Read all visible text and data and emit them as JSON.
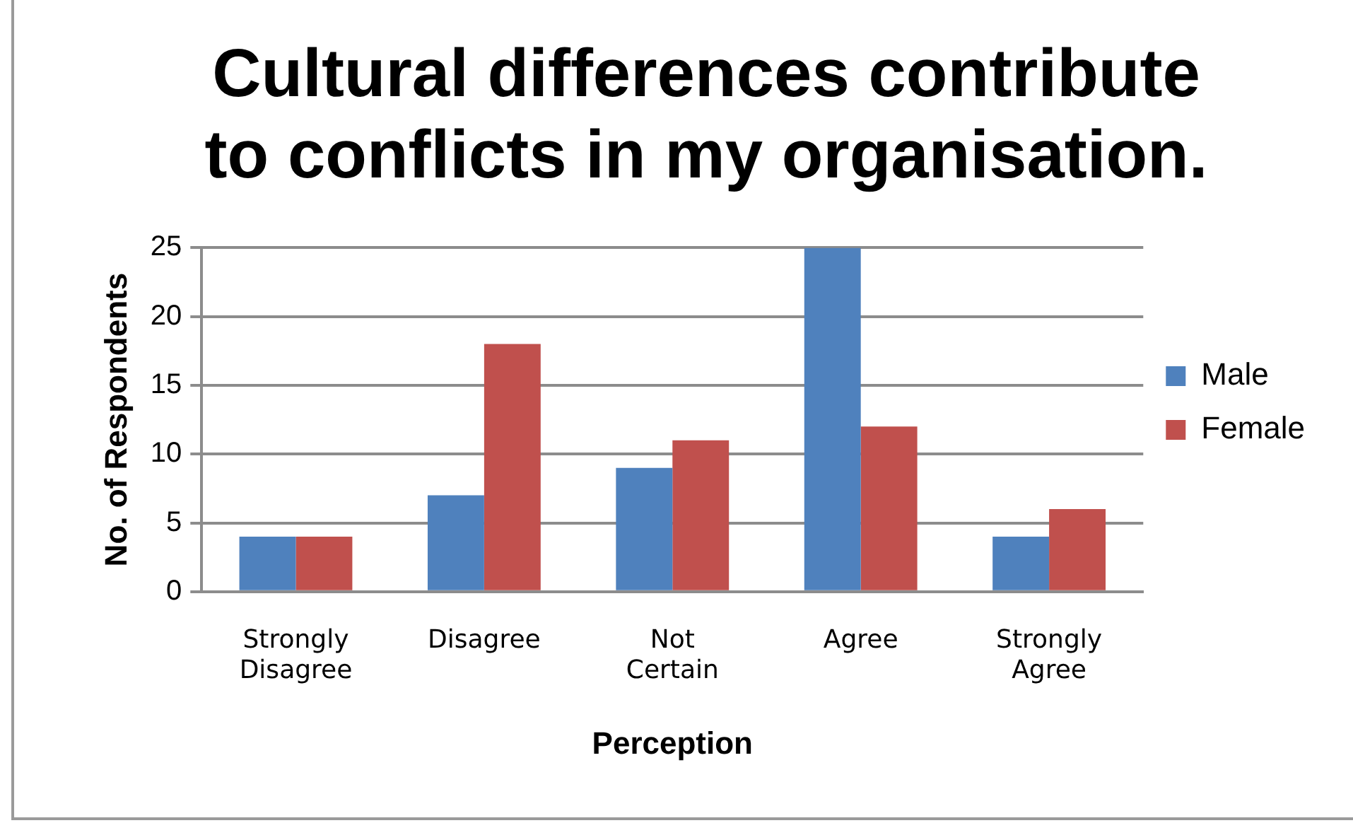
{
  "chart_data": {
    "type": "bar",
    "title": "Cultural differences contribute to conflicts in my organisation.",
    "xlabel": "Perception",
    "ylabel": "No. of Respondents",
    "categories": [
      "Strongly Disagree",
      "Disagree",
      "Not Certain",
      "Agree",
      "Strongly Agree"
    ],
    "series": [
      {
        "name": "Male",
        "color": "#4f81bd",
        "values": [
          4,
          7,
          9,
          25,
          4
        ]
      },
      {
        "name": "Female",
        "color": "#c0504d",
        "values": [
          4,
          18,
          11,
          12,
          6
        ]
      }
    ],
    "ylim": [
      0,
      25
    ],
    "yticks": [
      0,
      5,
      10,
      15,
      20,
      25
    ],
    "grid": "y",
    "legend": "right"
  }
}
